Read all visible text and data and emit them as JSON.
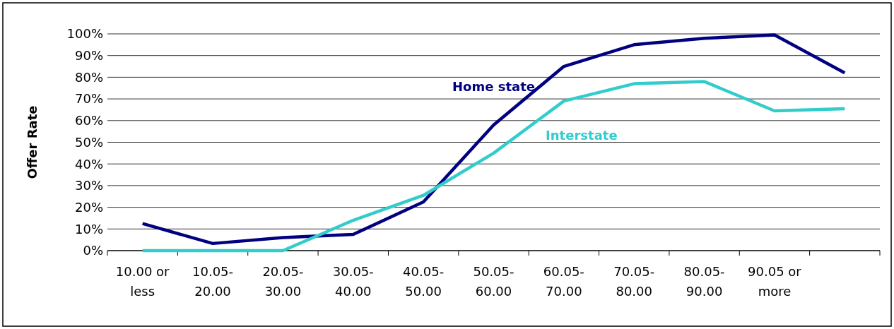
{
  "chart_data": {
    "type": "line",
    "ylabel": "Offer Rate",
    "categories": [
      "10.00 or less",
      "10.05-20.00",
      "20.05-30.00",
      "30.05-40.00",
      "40.05-50.00",
      "50.05-60.00",
      "60.05-70.00",
      "70.05-80.00",
      "80.05-90.00",
      "90.05 or more",
      null
    ],
    "series": [
      {
        "name": "Home state",
        "color": "#000080",
        "values": [
          12.5,
          3.3,
          6,
          7.5,
          22.5,
          58,
          85,
          95,
          98,
          99.5,
          82
        ]
      },
      {
        "name": "Interstate",
        "color": "#33cccc",
        "values": [
          0,
          0,
          0,
          14,
          25.5,
          45,
          69,
          77,
          78,
          64.5,
          65.5
        ]
      }
    ],
    "ylim": [
      0,
      100
    ],
    "yticks": [
      {
        "value": 0,
        "label": "0%"
      },
      {
        "value": 10,
        "label": "10%"
      },
      {
        "value": 20,
        "label": "20%"
      },
      {
        "value": 30,
        "label": "30%"
      },
      {
        "value": 40,
        "label": "40%"
      },
      {
        "value": 50,
        "label": "50%"
      },
      {
        "value": 60,
        "label": "60%"
      },
      {
        "value": 70,
        "label": "70%"
      },
      {
        "value": 80,
        "label": "80%"
      },
      {
        "value": 90,
        "label": "90%"
      },
      {
        "value": 100,
        "label": "100%"
      }
    ],
    "grid": "y",
    "marker": "none",
    "line_style": "solid"
  }
}
